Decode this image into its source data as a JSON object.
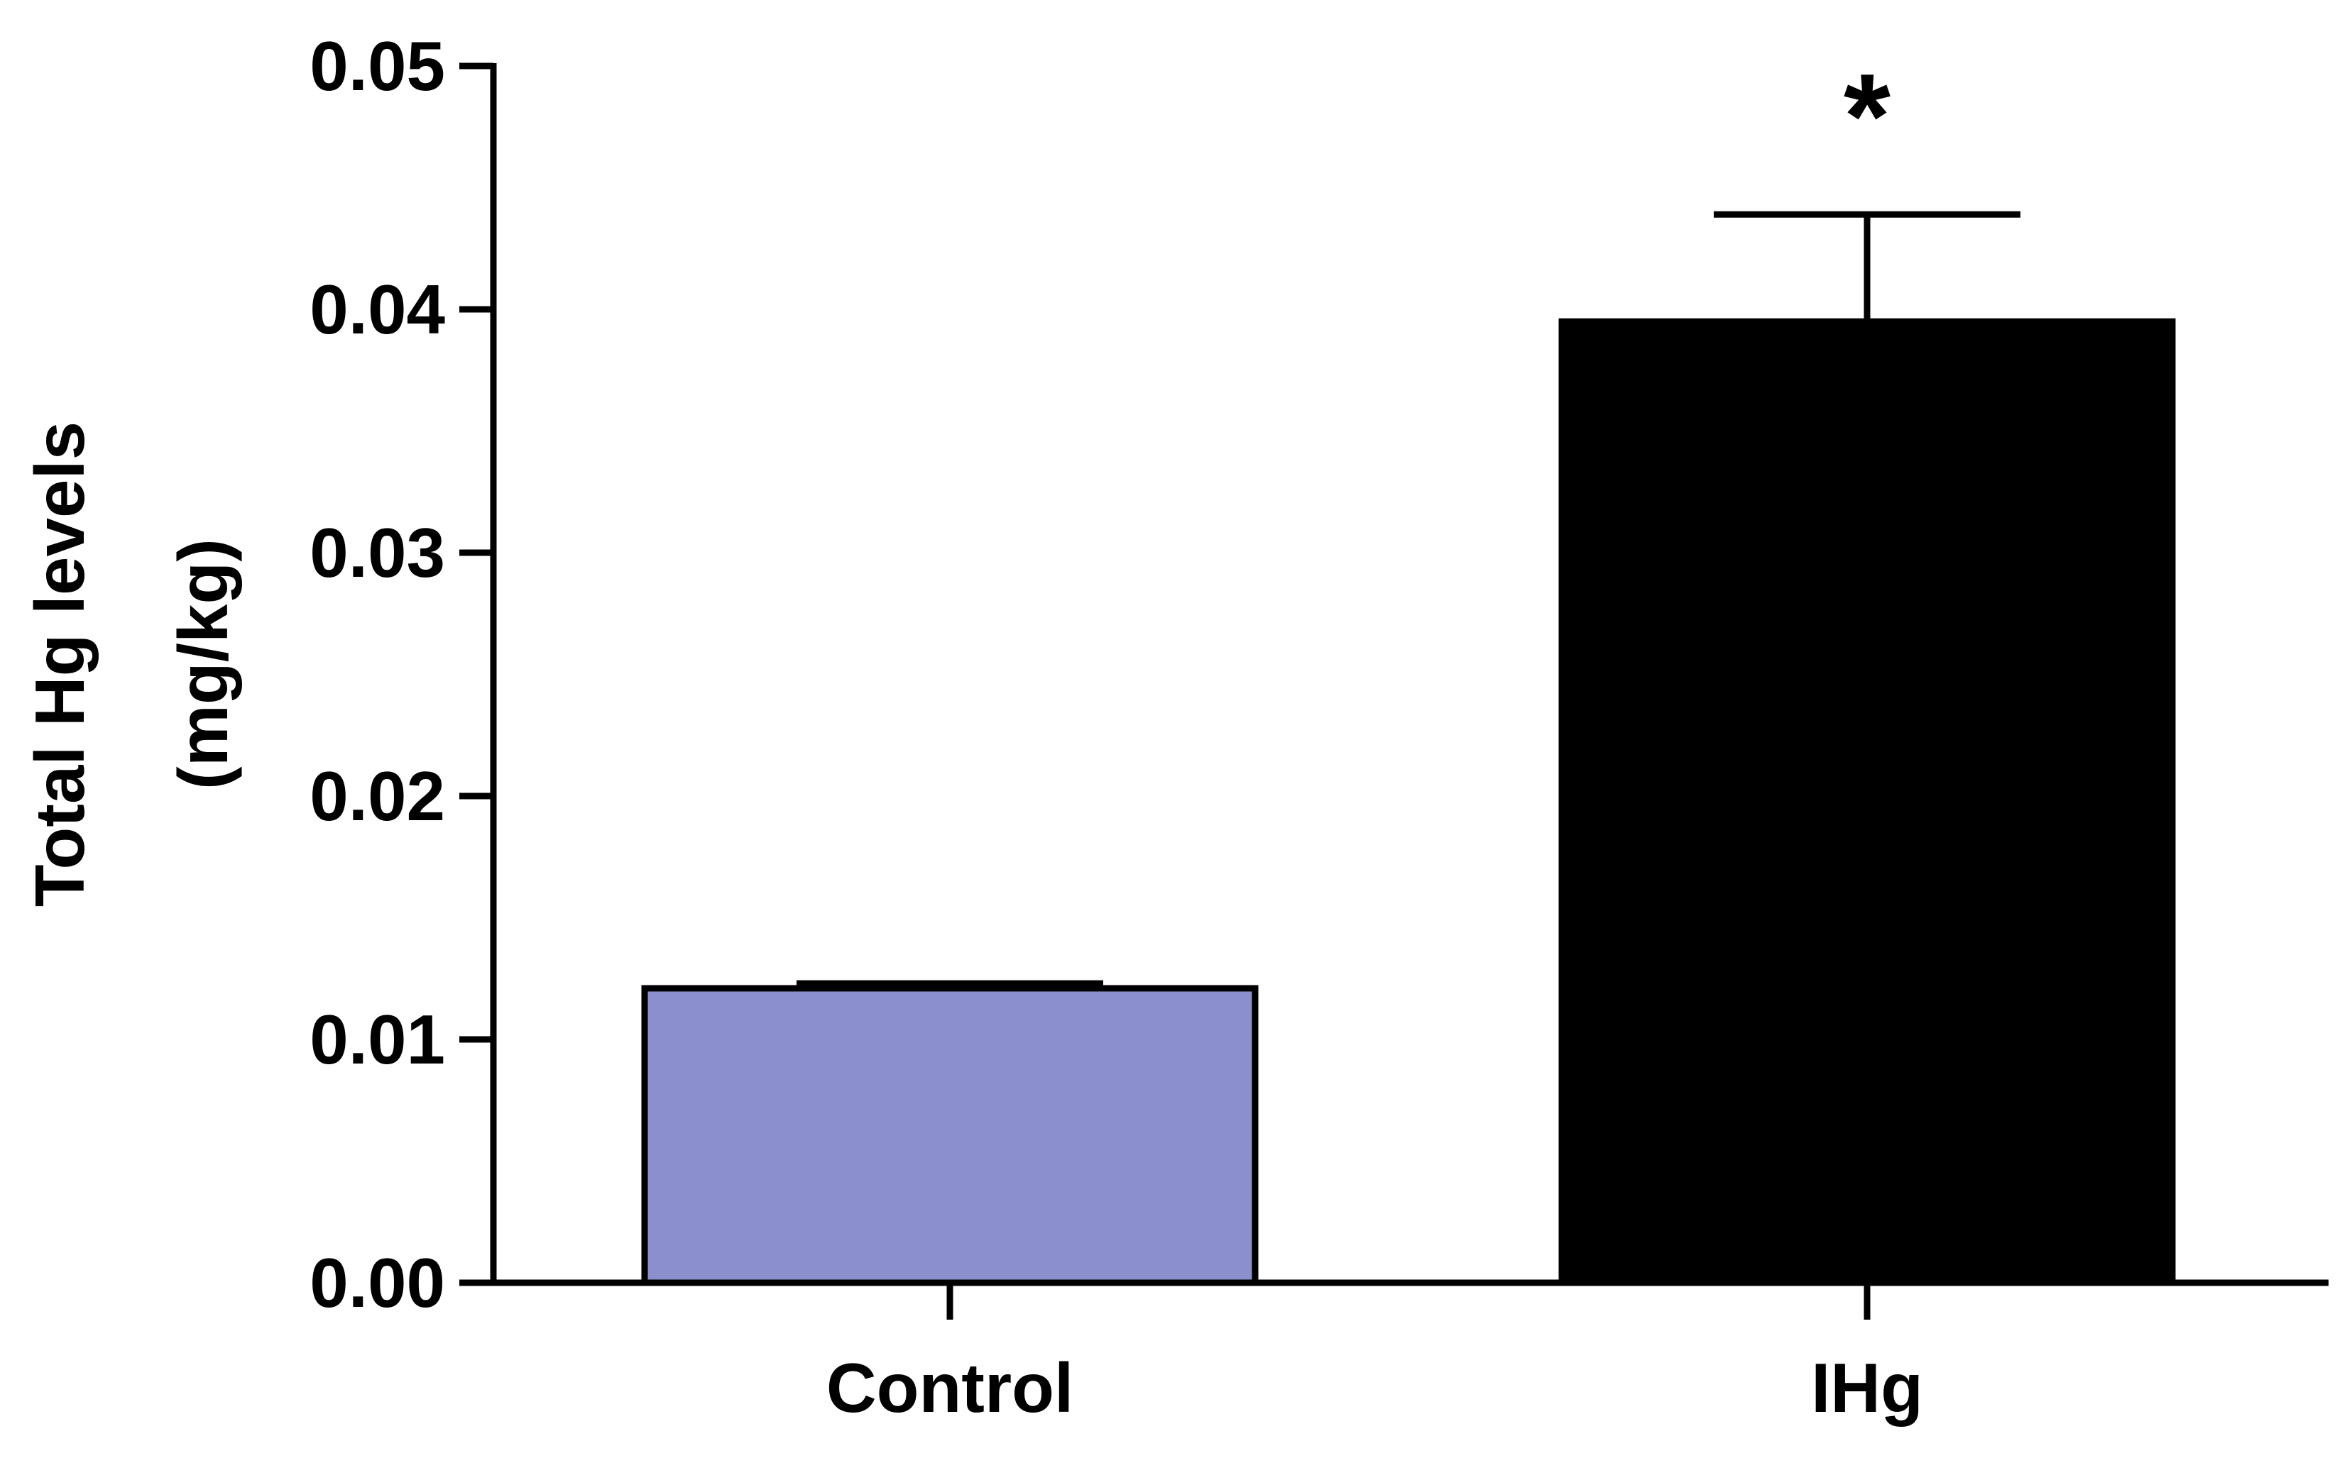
{
  "chart_data": {
    "type": "bar",
    "title": "",
    "xlabel": "",
    "ylabel": [
      "Total Hg levels",
      "(mg/kg)"
    ],
    "ylim": [
      0,
      0.05
    ],
    "yticks": [
      "0.00",
      "0.01",
      "0.02",
      "0.03",
      "0.04",
      "0.05"
    ],
    "categories": [
      "Control",
      "IHg"
    ],
    "values": [
      0.0121,
      0.0395
    ],
    "errors": [
      0.0002,
      0.0044
    ],
    "colors": [
      "#8b8fcc",
      "#000000"
    ],
    "annotations": [
      "",
      "*"
    ],
    "grid": false,
    "legend": "none"
  }
}
